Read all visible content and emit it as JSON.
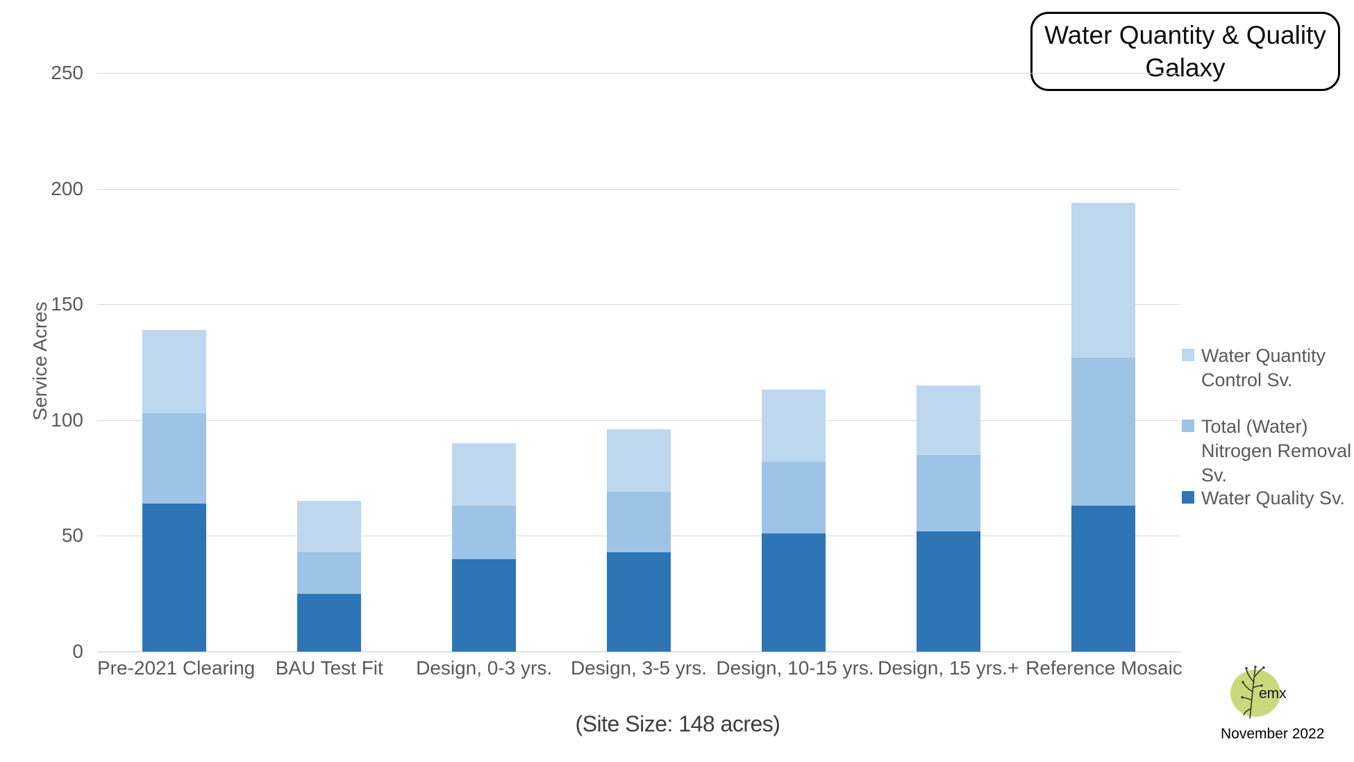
{
  "title": {
    "line1": "Water Quantity & Quality",
    "line2": "Galaxy"
  },
  "caption": "(Site Size: 148 acres)",
  "footer": {
    "logo_text": "emx",
    "date": "November 2022"
  },
  "y_axis": {
    "title": "Service Acres"
  },
  "colors": {
    "water_quality": "#2E75B6",
    "nitrogen_removal": "#9DC3E6",
    "water_quantity_control": "#BDD7EE",
    "gridline": "#D9D9D9",
    "axis_text": "#595959",
    "logo_circle": "#CBD97E"
  },
  "chart_data": {
    "type": "bar",
    "stacked": true,
    "title": "Water Quantity & Quality Galaxy",
    "xlabel": "",
    "ylabel": "Service Acres",
    "ylim": [
      0,
      250
    ],
    "yticks": [
      0,
      50,
      100,
      150,
      200,
      250
    ],
    "grid": true,
    "legend_position": "right",
    "categories": [
      "Pre-2021 Clearing",
      "BAU Test Fit",
      "Design, 0-3 yrs.",
      "Design, 3-5 yrs.",
      "Design, 10-15 yrs.",
      "Design, 15 yrs.+",
      "Reference Mosaic"
    ],
    "series": [
      {
        "name": "Water Quality Sv.",
        "color": "#2E75B6",
        "values": [
          64,
          25,
          40,
          43,
          51,
          52,
          63
        ]
      },
      {
        "name": "Total (Water) Nitrogen Removal Sv.",
        "color": "#9DC3E6",
        "values": [
          39,
          18,
          23,
          26,
          31,
          33,
          64
        ]
      },
      {
        "name": "Water Quantity Control Sv.",
        "color": "#BDD7EE",
        "values": [
          36,
          22,
          27,
          27,
          31,
          30,
          67
        ]
      }
    ],
    "stack_totals": [
      139,
      65,
      90,
      96,
      113,
      115,
      194
    ],
    "legend_order_top_to_bottom": [
      "Water Quantity Control Sv.",
      "Total (Water) Nitrogen Removal Sv.",
      "Water Quality Sv."
    ]
  }
}
